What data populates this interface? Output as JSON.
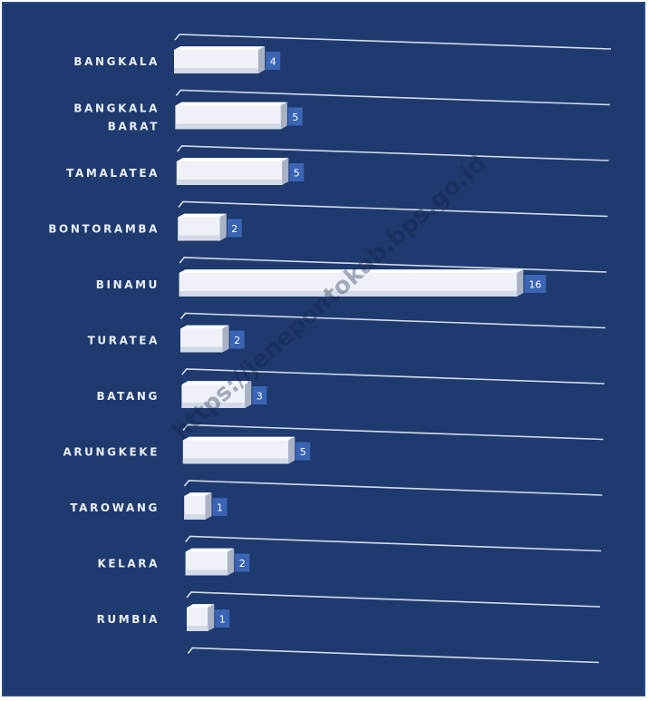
{
  "chart_data": {
    "type": "bar",
    "orientation": "horizontal",
    "categories": [
      [
        "BANGKALA"
      ],
      [
        "BANGKALA",
        "BARAT"
      ],
      [
        "TAMALATEA"
      ],
      [
        "BONTORAMBA"
      ],
      [
        "BINAMU"
      ],
      [
        "TURATEA"
      ],
      [
        "BATANG"
      ],
      [
        "ARUNGKEKE"
      ],
      [
        "TAROWANG"
      ],
      [
        "KELARA"
      ],
      [
        "RUMBIA"
      ]
    ],
    "values": [
      4,
      5,
      5,
      2,
      16,
      2,
      3,
      5,
      1,
      2,
      1
    ],
    "xlim": [
      0,
      20
    ],
    "grid": true,
    "legend": "none",
    "colors": {
      "background": "#1e3a6e",
      "bar_front": "#eef1f7",
      "bar_top": "#ffffff",
      "bar_side": "#a9b2c4",
      "value_badge": "#3a64b4",
      "gridline": "#e6ecf5",
      "label": "#e9edf6"
    },
    "watermark": "https://jenepontokab.bps.go.id"
  }
}
